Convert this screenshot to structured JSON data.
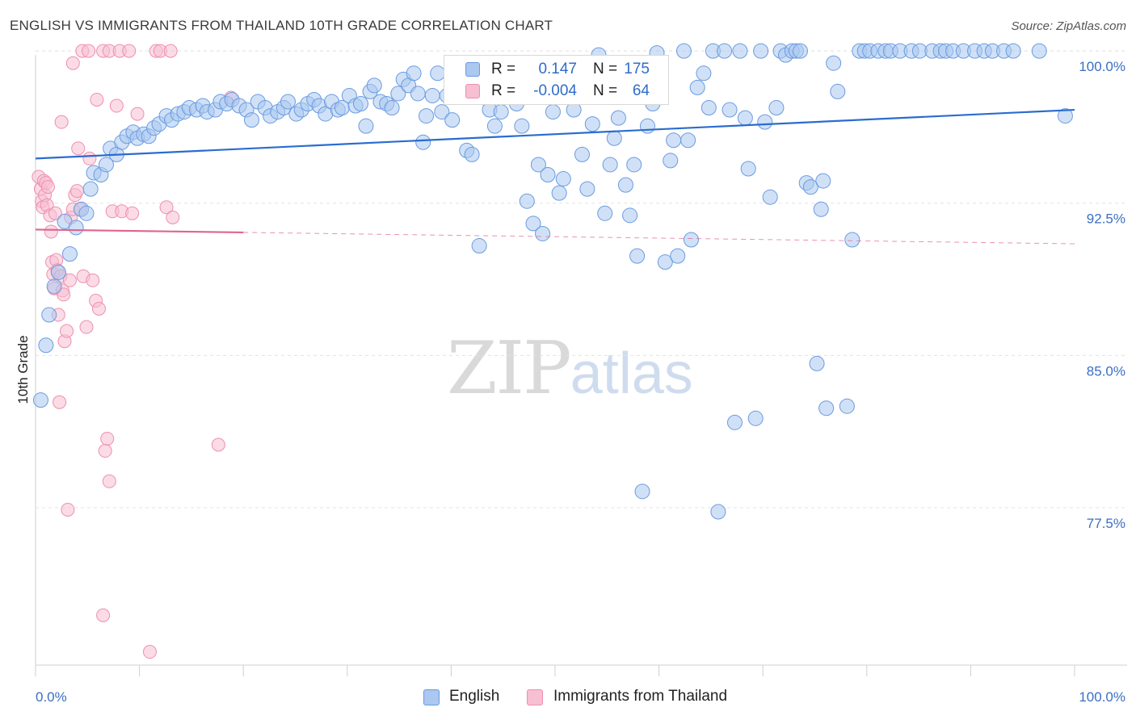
{
  "header": {
    "title": "ENGLISH VS IMMIGRANTS FROM THAILAND 10TH GRADE CORRELATION CHART",
    "source": "Source: ZipAtlas.com"
  },
  "watermark": {
    "zip": "ZIP",
    "atlas": "atlas"
  },
  "legend_top": {
    "rows": [
      {
        "r_label": "R =",
        "r_value": "0.147",
        "n_label": "N =",
        "n_value": "175"
      },
      {
        "r_label": "R =",
        "r_value": "-0.004",
        "n_label": "N =",
        "n_value": "64"
      }
    ]
  },
  "legend_bottom": {
    "items": [
      {
        "label": "English"
      },
      {
        "label": "Immigrants from Thailand"
      }
    ]
  },
  "chart_data": {
    "type": "scatter",
    "title": "ENGLISH VS IMMIGRANTS FROM THAILAND 10TH GRADE CORRELATION CHART",
    "xlabel": "",
    "ylabel": "10th Grade",
    "xlim": [
      0,
      100
    ],
    "ylim": [
      70.5,
      100.8
    ],
    "x_tick_labels": [
      "0.0%",
      "100.0%"
    ],
    "y_ticks": [
      100.0,
      92.5,
      85.0,
      77.5
    ],
    "y_tick_labels": [
      "100.0%",
      "92.5%",
      "85.0%",
      "77.5%"
    ],
    "grid": true,
    "legend_placement": "top-center and bottom-center",
    "colors": {
      "english_fill": "#aac8f0",
      "english_stroke": "#6b9be0",
      "english_line": "#2a6ccf",
      "thai_fill": "#f7bfd2",
      "thai_stroke": "#ee8fae",
      "thai_line": "#e0648e",
      "tick_text": "#3a6fc4"
    },
    "series": [
      {
        "name": "English",
        "trend": {
          "x": [
            0,
            100
          ],
          "y": [
            94.7,
            97.1
          ],
          "style": "solid"
        },
        "points": [
          [
            0.5,
            82.8
          ],
          [
            1.0,
            85.5
          ],
          [
            1.3,
            87.0
          ],
          [
            1.8,
            88.4
          ],
          [
            2.2,
            89.1
          ],
          [
            3.3,
            90.0
          ],
          [
            2.8,
            91.6
          ],
          [
            3.9,
            91.3
          ],
          [
            4.4,
            92.2
          ],
          [
            4.9,
            92.0
          ],
          [
            5.3,
            93.2
          ],
          [
            5.6,
            94.0
          ],
          [
            6.3,
            93.9
          ],
          [
            6.8,
            94.4
          ],
          [
            7.2,
            95.2
          ],
          [
            7.8,
            94.9
          ],
          [
            8.3,
            95.5
          ],
          [
            8.8,
            95.8
          ],
          [
            9.4,
            96.0
          ],
          [
            9.8,
            95.7
          ],
          [
            10.4,
            95.9
          ],
          [
            10.9,
            95.8
          ],
          [
            11.4,
            96.2
          ],
          [
            11.9,
            96.4
          ],
          [
            12.6,
            96.8
          ],
          [
            13.1,
            96.6
          ],
          [
            13.7,
            96.9
          ],
          [
            14.3,
            97.0
          ],
          [
            14.8,
            97.2
          ],
          [
            15.5,
            97.1
          ],
          [
            16.1,
            97.3
          ],
          [
            16.5,
            97.0
          ],
          [
            17.3,
            97.1
          ],
          [
            17.8,
            97.5
          ],
          [
            18.4,
            97.4
          ],
          [
            18.9,
            97.6
          ],
          [
            19.6,
            97.3
          ],
          [
            20.3,
            97.1
          ],
          [
            20.8,
            96.6
          ],
          [
            21.4,
            97.5
          ],
          [
            22.1,
            97.2
          ],
          [
            22.6,
            96.8
          ],
          [
            23.3,
            97.0
          ],
          [
            23.9,
            97.2
          ],
          [
            24.3,
            97.5
          ],
          [
            25.1,
            96.9
          ],
          [
            25.6,
            97.1
          ],
          [
            26.2,
            97.4
          ],
          [
            26.8,
            97.6
          ],
          [
            27.3,
            97.3
          ],
          [
            27.9,
            96.9
          ],
          [
            28.5,
            97.5
          ],
          [
            29.1,
            97.1
          ],
          [
            29.5,
            97.2
          ],
          [
            30.2,
            97.8
          ],
          [
            30.8,
            97.3
          ],
          [
            31.3,
            97.4
          ],
          [
            31.8,
            96.3
          ],
          [
            32.2,
            98.0
          ],
          [
            32.6,
            98.3
          ],
          [
            33.2,
            97.5
          ],
          [
            33.8,
            97.4
          ],
          [
            34.3,
            97.2
          ],
          [
            34.9,
            97.9
          ],
          [
            35.4,
            98.6
          ],
          [
            35.9,
            98.3
          ],
          [
            36.4,
            98.9
          ],
          [
            36.8,
            97.9
          ],
          [
            37.3,
            95.5
          ],
          [
            37.6,
            96.8
          ],
          [
            38.2,
            97.8
          ],
          [
            38.7,
            98.9
          ],
          [
            39.1,
            97.0
          ],
          [
            39.6,
            97.8
          ],
          [
            40.1,
            96.6
          ],
          [
            40.6,
            99.2
          ],
          [
            41.0,
            97.8
          ],
          [
            41.5,
            95.1
          ],
          [
            42.0,
            94.9
          ],
          [
            42.5,
            98.6
          ],
          [
            42.7,
            90.4
          ],
          [
            43.2,
            97.7
          ],
          [
            43.7,
            97.1
          ],
          [
            44.2,
            96.3
          ],
          [
            44.8,
            97.0
          ],
          [
            45.3,
            98.7
          ],
          [
            45.8,
            99.3
          ],
          [
            46.3,
            97.4
          ],
          [
            46.8,
            96.3
          ],
          [
            47.3,
            92.6
          ],
          [
            47.9,
            91.5
          ],
          [
            48.4,
            94.4
          ],
          [
            48.8,
            91.0
          ],
          [
            49.3,
            93.9
          ],
          [
            49.8,
            97.0
          ],
          [
            50.4,
            93.0
          ],
          [
            50.8,
            93.7
          ],
          [
            51.3,
            99.1
          ],
          [
            51.8,
            97.1
          ],
          [
            52.1,
            98.6
          ],
          [
            52.6,
            94.9
          ],
          [
            53.1,
            93.2
          ],
          [
            53.6,
            96.4
          ],
          [
            54.2,
            99.8
          ],
          [
            54.8,
            92.0
          ],
          [
            55.3,
            94.4
          ],
          [
            55.7,
            95.7
          ],
          [
            56.1,
            96.7
          ],
          [
            56.8,
            93.4
          ],
          [
            57.2,
            91.9
          ],
          [
            57.6,
            94.4
          ],
          [
            57.9,
            89.9
          ],
          [
            58.4,
            78.3
          ],
          [
            58.9,
            96.3
          ],
          [
            59.4,
            97.4
          ],
          [
            59.8,
            99.9
          ],
          [
            60.6,
            89.6
          ],
          [
            61.1,
            94.6
          ],
          [
            61.4,
            95.6
          ],
          [
            61.8,
            89.9
          ],
          [
            62.4,
            100.0
          ],
          [
            62.8,
            95.6
          ],
          [
            63.1,
            90.7
          ],
          [
            63.7,
            98.2
          ],
          [
            64.3,
            98.9
          ],
          [
            64.8,
            97.2
          ],
          [
            65.2,
            100.0
          ],
          [
            65.7,
            77.3
          ],
          [
            66.3,
            100.0
          ],
          [
            66.8,
            97.1
          ],
          [
            67.3,
            81.7
          ],
          [
            67.8,
            100.0
          ],
          [
            68.3,
            96.7
          ],
          [
            68.6,
            94.2
          ],
          [
            69.3,
            81.9
          ],
          [
            69.8,
            100.0
          ],
          [
            70.2,
            96.5
          ],
          [
            70.7,
            92.8
          ],
          [
            71.3,
            97.2
          ],
          [
            71.7,
            100.0
          ],
          [
            72.2,
            99.8
          ],
          [
            72.8,
            100.0
          ],
          [
            73.2,
            100.0
          ],
          [
            73.6,
            100.0
          ],
          [
            74.2,
            93.5
          ],
          [
            74.6,
            93.3
          ],
          [
            75.2,
            84.6
          ],
          [
            75.6,
            92.2
          ],
          [
            75.8,
            93.6
          ],
          [
            76.1,
            82.4
          ],
          [
            76.8,
            99.4
          ],
          [
            77.2,
            98.0
          ],
          [
            78.1,
            82.5
          ],
          [
            78.6,
            90.7
          ],
          [
            79.3,
            100.0
          ],
          [
            79.8,
            100.0
          ],
          [
            80.3,
            100.0
          ],
          [
            81.1,
            100.0
          ],
          [
            81.8,
            100.0
          ],
          [
            82.3,
            100.0
          ],
          [
            83.2,
            100.0
          ],
          [
            84.3,
            100.0
          ],
          [
            85.1,
            100.0
          ],
          [
            86.3,
            100.0
          ],
          [
            87.1,
            100.0
          ],
          [
            87.6,
            100.0
          ],
          [
            88.3,
            100.0
          ],
          [
            89.3,
            100.0
          ],
          [
            90.4,
            100.0
          ],
          [
            91.3,
            100.0
          ],
          [
            92.1,
            100.0
          ],
          [
            93.2,
            100.0
          ],
          [
            94.1,
            100.0
          ],
          [
            96.6,
            100.0
          ],
          [
            99.1,
            96.8
          ]
        ]
      },
      {
        "name": "Immigrants from Thailand",
        "trend": {
          "x": [
            0,
            100
          ],
          "y": [
            91.2,
            90.5
          ],
          "solid_until_x": 20,
          "style": "solid-then-dashed"
        },
        "points": [
          [
            0.3,
            93.8
          ],
          [
            0.5,
            93.2
          ],
          [
            0.6,
            92.6
          ],
          [
            0.7,
            92.3
          ],
          [
            0.8,
            93.6
          ],
          [
            0.9,
            92.9
          ],
          [
            1.0,
            93.5
          ],
          [
            1.1,
            92.4
          ],
          [
            1.2,
            93.3
          ],
          [
            1.4,
            91.9
          ],
          [
            1.5,
            91.1
          ],
          [
            1.6,
            89.6
          ],
          [
            1.7,
            89.0
          ],
          [
            1.8,
            88.3
          ],
          [
            1.9,
            92.0
          ],
          [
            2.0,
            89.7
          ],
          [
            2.1,
            89.2
          ],
          [
            2.2,
            87.0
          ],
          [
            2.3,
            82.7
          ],
          [
            2.4,
            88.9
          ],
          [
            2.6,
            88.2
          ],
          [
            2.7,
            88.0
          ],
          [
            2.8,
            85.7
          ],
          [
            3.0,
            86.2
          ],
          [
            3.1,
            77.4
          ],
          [
            3.3,
            88.7
          ],
          [
            3.4,
            91.8
          ],
          [
            3.6,
            92.2
          ],
          [
            3.8,
            92.9
          ],
          [
            4.0,
            93.1
          ],
          [
            4.3,
            92.2
          ],
          [
            4.6,
            88.9
          ],
          [
            4.9,
            86.4
          ],
          [
            5.2,
            94.7
          ],
          [
            5.5,
            88.7
          ],
          [
            5.8,
            87.7
          ],
          [
            6.1,
            87.3
          ],
          [
            6.5,
            72.2
          ],
          [
            6.7,
            80.3
          ],
          [
            6.9,
            80.9
          ],
          [
            7.1,
            78.8
          ],
          [
            7.4,
            92.1
          ],
          [
            7.8,
            97.3
          ],
          [
            8.3,
            92.1
          ],
          [
            9.3,
            92.0
          ],
          [
            9.8,
            96.9
          ],
          [
            11.0,
            70.4
          ],
          [
            12.6,
            92.3
          ],
          [
            13.2,
            91.8
          ],
          [
            17.6,
            80.6
          ],
          [
            18.8,
            97.7
          ],
          [
            2.5,
            96.5
          ],
          [
            3.6,
            99.4
          ],
          [
            4.1,
            95.2
          ],
          [
            4.5,
            100.0
          ],
          [
            5.1,
            100.0
          ],
          [
            5.9,
            97.6
          ],
          [
            6.5,
            100.0
          ],
          [
            7.1,
            100.0
          ],
          [
            8.1,
            100.0
          ],
          [
            9.0,
            100.0
          ],
          [
            11.6,
            100.0
          ],
          [
            12.0,
            100.0
          ],
          [
            13.0,
            100.0
          ]
        ]
      }
    ]
  }
}
